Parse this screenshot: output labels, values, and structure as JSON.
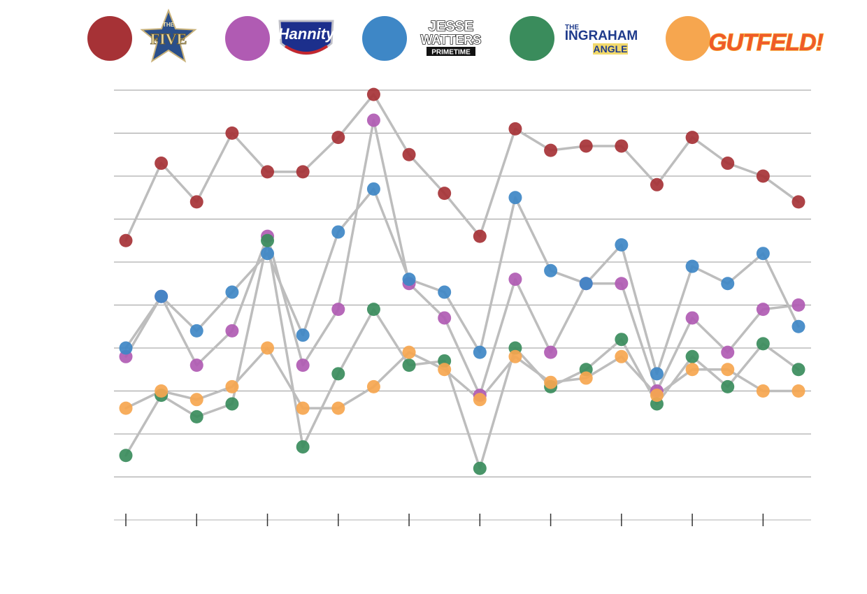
{
  "legend": [
    {
      "series": "The Five",
      "color": "#a63236",
      "logo_lines": [
        "THE",
        "FIVE"
      ],
      "logo_style": "star"
    },
    {
      "series": "Hannity",
      "color": "#b05bb3",
      "logo_lines": [
        "Hannity"
      ],
      "logo_style": "shield"
    },
    {
      "series": "Jesse Watters Primetime",
      "color": "#3e87c6",
      "logo_lines": [
        "JESSE",
        "WATTERS",
        "PRIMETIME"
      ],
      "logo_style": "stack"
    },
    {
      "series": "The Ingraham Angle",
      "color": "#3a8c5c",
      "logo_lines": [
        "THE",
        "INGRAHAM",
        "ANGLE"
      ],
      "logo_style": "angle"
    },
    {
      "series": "Gutfeld!",
      "color": "#f6a64f",
      "logo_lines": [
        "GUTFELD!"
      ],
      "logo_style": "gutfeld"
    }
  ],
  "chart_data": {
    "type": "line",
    "line_color": "#bdbdbd",
    "grid": true,
    "ylim": [
      0,
      10
    ],
    "x": [
      1,
      2,
      3,
      4,
      5,
      6,
      7,
      8,
      9,
      10,
      11,
      12,
      13,
      14,
      15,
      16,
      17,
      18,
      19,
      20
    ],
    "series": [
      {
        "name": "The Five",
        "color": "#a63236",
        "values": [
          6.5,
          8.3,
          7.4,
          9.0,
          8.1,
          8.1,
          8.9,
          9.9,
          8.5,
          7.6,
          6.6,
          9.1,
          8.6,
          8.7,
          8.7,
          7.8,
          8.9,
          8.3,
          8.0,
          7.4
        ]
      },
      {
        "name": "Hannity",
        "color": "#b05bb3",
        "values": [
          3.8,
          5.2,
          3.6,
          4.4,
          6.6,
          3.6,
          4.9,
          9.3,
          5.5,
          4.7,
          2.9,
          5.6,
          3.9,
          5.5,
          5.5,
          3.0,
          4.7,
          3.9,
          4.9,
          5.0
        ]
      },
      {
        "name": "Jesse Watters Primetime",
        "color": "#3e87c6",
        "values": [
          4.0,
          5.2,
          4.4,
          5.3,
          6.2,
          4.3,
          6.7,
          7.7,
          5.6,
          5.3,
          3.9,
          7.5,
          5.8,
          5.5,
          6.4,
          3.4,
          5.9,
          5.5,
          6.2,
          4.5
        ]
      },
      {
        "name": "The Ingraham Angle",
        "color": "#3a8c5c",
        "values": [
          1.5,
          2.9,
          2.4,
          2.7,
          6.5,
          1.7,
          3.4,
          4.9,
          3.6,
          3.7,
          1.2,
          4.0,
          3.1,
          3.5,
          4.2,
          2.7,
          3.8,
          3.1,
          4.1,
          3.5
        ]
      },
      {
        "name": "Gutfeld!",
        "color": "#f6a64f",
        "values": [
          2.6,
          3.0,
          2.8,
          3.1,
          4.0,
          2.6,
          2.6,
          3.1,
          3.9,
          3.5,
          2.8,
          3.8,
          3.2,
          3.3,
          3.8,
          2.9,
          3.5,
          3.5,
          3.0,
          3.0
        ]
      }
    ]
  }
}
